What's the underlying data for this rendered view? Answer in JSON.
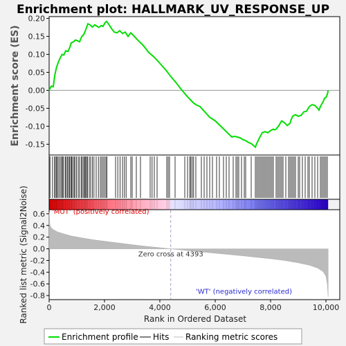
{
  "chart_data": {
    "type": "line",
    "title": "Enrichment plot: HALLMARK_UV_RESPONSE_UP",
    "es_panel": {
      "ylabel": "Enrichment score (ES)",
      "ylim": [
        -0.18,
        0.205
      ],
      "yticks": [
        -0.15,
        -0.1,
        -0.05,
        0.0,
        0.05,
        0.1,
        0.15,
        0.2
      ],
      "ytick_labels": [
        "-0.15",
        "-0.10",
        "-0.05",
        "0.00",
        "0.05",
        "0.10",
        "0.15",
        "0.20"
      ],
      "series": [
        {
          "color": "#00dd00",
          "x": [
            0,
            80,
            150,
            200,
            260,
            330,
            400,
            470,
            530,
            600,
            680,
            750,
            800,
            880,
            950,
            1020,
            1100,
            1180,
            1250,
            1320,
            1400,
            1480,
            1560,
            1650,
            1730,
            1800,
            1880,
            1950,
            2020,
            2080,
            2150,
            2250,
            2350,
            2450,
            2550,
            2650,
            2750,
            2850,
            2950,
            3050,
            3200,
            3400,
            3600,
            3800,
            4000,
            4200,
            4400,
            4600,
            4800,
            5000,
            5100,
            5200,
            5300,
            5450,
            5600,
            5800,
            6000,
            6200,
            6400,
            6600,
            6700,
            6800,
            6900,
            7000,
            7100,
            7200,
            7300,
            7400,
            7450,
            7500,
            7550,
            7600,
            7650,
            7700,
            7800,
            7900,
            8000,
            8100,
            8150,
            8200,
            8300,
            8400,
            8500,
            8600,
            8700,
            8750,
            8800,
            8900,
            9000,
            9100,
            9200,
            9300,
            9400,
            9500,
            9600,
            9700,
            9750,
            9800,
            9850,
            9900,
            9950,
            10000,
            10050,
            10080
          ],
          "y": [
            0.0,
            0.012,
            0.01,
            0.04,
            0.062,
            0.078,
            0.09,
            0.1,
            0.098,
            0.11,
            0.108,
            0.12,
            0.132,
            0.135,
            0.14,
            0.138,
            0.135,
            0.15,
            0.155,
            0.168,
            0.185,
            0.182,
            0.176,
            0.182,
            0.178,
            0.175,
            0.18,
            0.178,
            0.188,
            0.192,
            0.184,
            0.172,
            0.162,
            0.16,
            0.166,
            0.158,
            0.162,
            0.15,
            0.16,
            0.152,
            0.14,
            0.125,
            0.105,
            0.092,
            0.075,
            0.058,
            0.038,
            0.02,
            0.0,
            -0.018,
            -0.026,
            -0.034,
            -0.04,
            -0.045,
            -0.058,
            -0.075,
            -0.085,
            -0.1,
            -0.115,
            -0.13,
            -0.128,
            -0.13,
            -0.132,
            -0.137,
            -0.14,
            -0.145,
            -0.148,
            -0.155,
            -0.158,
            -0.148,
            -0.14,
            -0.132,
            -0.125,
            -0.118,
            -0.115,
            -0.118,
            -0.112,
            -0.108,
            -0.11,
            -0.108,
            -0.098,
            -0.085,
            -0.09,
            -0.098,
            -0.092,
            -0.08,
            -0.072,
            -0.068,
            -0.072,
            -0.07,
            -0.06,
            -0.058,
            -0.045,
            -0.04,
            -0.042,
            -0.05,
            -0.055,
            -0.045,
            -0.038,
            -0.032,
            -0.022,
            -0.02,
            -0.012,
            0.0
          ]
        }
      ]
    },
    "hits_panel": {
      "hit_positions": [
        30,
        120,
        190,
        230,
        270,
        300,
        350,
        400,
        450,
        480,
        520,
        580,
        610,
        660,
        700,
        740,
        780,
        810,
        850,
        900,
        930,
        990,
        1050,
        1100,
        1160,
        1200,
        1250,
        1280,
        1320,
        1350,
        1390,
        1450,
        1500,
        1560,
        1620,
        1700,
        1780,
        1850,
        1900,
        1950,
        2000,
        2050,
        2090,
        2400,
        2480,
        2560,
        2650,
        2720,
        2780,
        2950,
        3000,
        3150,
        3300,
        3650,
        3720,
        3800,
        3900,
        4250,
        4300,
        4350,
        4550,
        4900,
        5000,
        5080,
        5120,
        5170,
        5220,
        5300,
        5500,
        5600,
        5700,
        5800,
        5900,
        6050,
        6150,
        6300,
        6400,
        6500,
        6650,
        6750,
        6800,
        6850,
        6950,
        7050,
        7100,
        7300,
        7450,
        7500,
        7550,
        7600,
        7650,
        7700,
        7750,
        7800,
        7850,
        7900,
        7950,
        8000,
        8050,
        8100,
        8200,
        8250,
        8300,
        8350,
        8400,
        8450,
        8550,
        8650,
        8700,
        8750,
        8800,
        8850,
        8900,
        9000,
        9050,
        9150,
        9250,
        9350,
        9400,
        9500,
        9600,
        9700,
        9800,
        9850,
        9900,
        9950,
        10000,
        10050
      ]
    },
    "metric_panel": {
      "ylabel": "Ranked list metric (Signal2Noise)",
      "xlabel": "Rank in Ordered Dataset",
      "ylim": [
        -0.87,
        0.67
      ],
      "yticks": [
        -0.8,
        -0.6,
        -0.4,
        -0.2,
        0.0,
        0.2,
        0.4,
        0.6
      ],
      "ytick_labels": [
        "-0.8",
        "-0.6",
        "-0.4",
        "-0.2",
        "0.0",
        "0.2",
        "0.4",
        "0.6"
      ],
      "xlim": [
        0,
        10500
      ],
      "xticks": [
        0,
        2000,
        4000,
        6000,
        8000,
        10000
      ],
      "xtick_labels": [
        "0",
        "2,000",
        "4,000",
        "6,000",
        "8,000",
        "10,000"
      ],
      "zero_cross": 4393,
      "zero_cross_label": "Zero cross at 4393",
      "pos_label": "'MUT' (positively correlated)",
      "neg_label": "'WT' (negatively correlated)",
      "profile_x": [
        0,
        30,
        80,
        150,
        300,
        500,
        800,
        1200,
        1600,
        2000,
        2500,
        3000,
        3500,
        4000,
        4393,
        5000,
        6000,
        7000,
        8000,
        8500,
        9000,
        9400,
        9700,
        9900,
        10000,
        10050,
        10080
      ],
      "profile_y": [
        0.62,
        0.4,
        0.36,
        0.33,
        0.29,
        0.26,
        0.22,
        0.185,
        0.155,
        0.13,
        0.1,
        0.07,
        0.042,
        0.02,
        0.0,
        -0.03,
        -0.075,
        -0.12,
        -0.17,
        -0.2,
        -0.24,
        -0.28,
        -0.33,
        -0.39,
        -0.47,
        -0.6,
        -0.82
      ]
    },
    "legend": {
      "placement": "bottom",
      "items": [
        {
          "label": "Enrichment profile",
          "color": "#00dd00"
        },
        {
          "label": "Hits",
          "color": "#000000"
        },
        {
          "label": "Ranking metric scores",
          "color": "#bbbbbb"
        }
      ]
    }
  }
}
